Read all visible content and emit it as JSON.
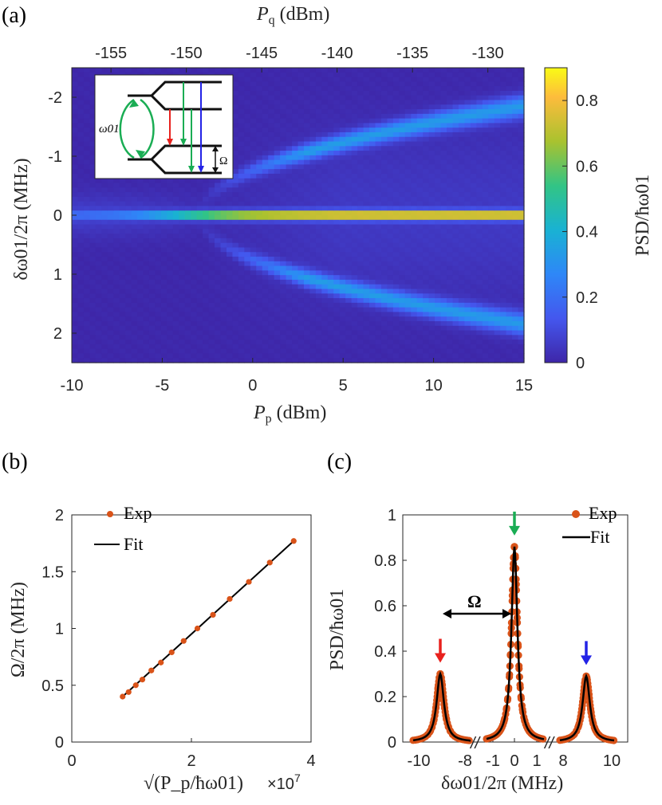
{
  "panels": {
    "a": "(a)",
    "b": "(b)",
    "c": "(c)"
  },
  "chart_data": [
    {
      "id": "a",
      "type": "heatmap",
      "title": "",
      "xlabel": "P_p (dBm)",
      "xlabel_main": "P",
      "xlabel_sub": "p",
      "xlabel_unit": " (dBm)",
      "x_top_label_main": "P",
      "x_top_label_sub": "q",
      "x_top_label_unit": " (dBm)",
      "ylabel": "δω01/2π (MHz)",
      "colorbar_label": "PSD/ħω01",
      "xlim": [
        -10,
        15
      ],
      "ylim": [
        2.5,
        -2.5
      ],
      "x_ticks": [
        -10,
        -5,
        0,
        5,
        10,
        15
      ],
      "x_top_ticks": [
        -155,
        -150,
        -145,
        -140,
        -135,
        -130
      ],
      "x_top_range": [
        -157.6,
        -127.6
      ],
      "y_ticks": [
        -2,
        -1,
        0,
        1,
        2
      ],
      "colorbar_ticks": [
        0,
        0.2,
        0.4,
        0.6,
        0.8
      ],
      "colorbar_range": [
        0,
        0.9
      ],
      "peak_psd": 0.88,
      "split_onset_dbm": -3,
      "max_splitting_mhz": 1.85,
      "inset": {
        "label_omega01": "ω01",
        "label_Omega": "Ω",
        "arrow_colors": [
          "#e8211d",
          "#1aad54",
          "#1aad54",
          "#2323e6"
        ]
      }
    },
    {
      "id": "b",
      "type": "scatter",
      "title": "",
      "xlabel": "√(P_p/ħω01)",
      "x_multiplier": "×10",
      "x_multiplier_exp": "7",
      "ylabel": "Ω/2π (MHz)",
      "xlim": [
        0,
        4
      ],
      "ylim": [
        0,
        2
      ],
      "x_ticks": [
        0,
        2,
        4
      ],
      "y_ticks": [
        0,
        0.5,
        1,
        1.5,
        2
      ],
      "series": [
        {
          "name": "Exp",
          "x": [
            0.85,
            0.95,
            1.07,
            1.18,
            1.33,
            1.49,
            1.67,
            1.87,
            2.1,
            2.36,
            2.64,
            2.96,
            3.31,
            3.71
          ],
          "y": [
            0.4,
            0.44,
            0.5,
            0.55,
            0.63,
            0.7,
            0.79,
            0.89,
            1.0,
            1.12,
            1.26,
            1.41,
            1.58,
            1.77
          ]
        },
        {
          "name": "Fit",
          "x": [
            0.85,
            3.71
          ],
          "y": [
            0.4,
            1.77
          ]
        }
      ],
      "legend": [
        "Exp",
        "Fit"
      ],
      "legend_position": "top-left"
    },
    {
      "id": "c",
      "type": "line",
      "title": "",
      "xlabel": "δω01/2π (MHz)",
      "ylabel": "PSD/ħω01",
      "ylim": [
        0,
        1
      ],
      "y_ticks": [
        0,
        0.2,
        0.4,
        0.6,
        0.8,
        1
      ],
      "x_tick_labels": [
        "-10",
        "-8",
        "-1",
        "0",
        "1",
        "8",
        "10"
      ],
      "break_symbol": "//",
      "peaks": [
        {
          "segment": "left",
          "center_mhz": -9.1,
          "height": 0.3,
          "color": "#e8211d"
        },
        {
          "segment": "middle",
          "center_mhz": 0.0,
          "height": 0.86,
          "color": "#1aad54"
        },
        {
          "segment": "right",
          "center_mhz": 9.1,
          "height": 0.29,
          "color": "#2323e6"
        }
      ],
      "annotation": "Ω",
      "legend": [
        "Exp",
        "Fit"
      ],
      "legend_position": "top-right"
    }
  ],
  "colors": {
    "exp": "#d95319",
    "fit": "#000000",
    "axis": "#262626"
  }
}
